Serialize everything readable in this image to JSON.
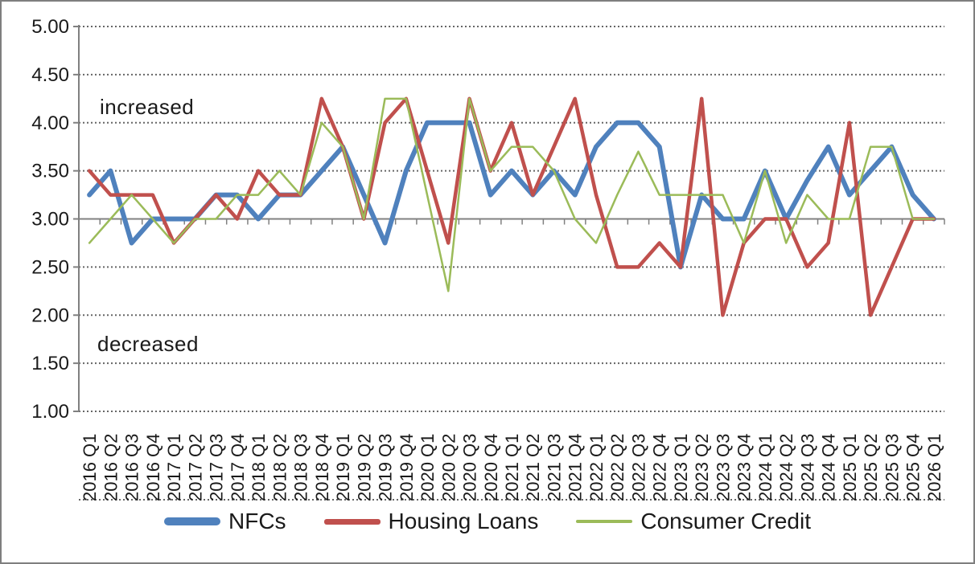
{
  "chart_data": {
    "type": "line",
    "title": "",
    "xlabel": "",
    "ylabel": "",
    "ylim": [
      1.0,
      5.0
    ],
    "ytick_step": 0.5,
    "axis_cross_value": 3.0,
    "grid": "horizontal-dotted",
    "legend_position": "bottom",
    "ytick_values": [
      5.0,
      4.5,
      4.0,
      3.5,
      3.0,
      2.5,
      2.0,
      1.5,
      1.0
    ],
    "ytick_labels": [
      "5.00",
      "4.50",
      "4.00",
      "3.50",
      "3.00",
      "2.50",
      "2.00",
      "1.50",
      "1.00"
    ],
    "x_labels": [
      "2016 Q1",
      "2016 Q2",
      "2016 Q3",
      "2016 Q4",
      "2017 Q1",
      "2017 Q2",
      "2017 Q3",
      "2017 Q4",
      "2018 Q1",
      "2018 Q2",
      "2018 Q3",
      "2018 Q4",
      "2019 Q1",
      "2019 Q2",
      "2019 Q3",
      "2019 Q4",
      "2020 Q1",
      "2020 Q2",
      "2020 Q3",
      "2020 Q4",
      "2021 Q1",
      "2021 Q2",
      "2021 Q3",
      "2021 Q4",
      "2022 Q1",
      "2022 Q2",
      "2022 Q3",
      "2022 Q4",
      "2023 Q1",
      "2023 Q2",
      "2023 Q3",
      "2023 Q4",
      "2024 Q1",
      "2024 Q2",
      "2024 Q3",
      "2024 Q4",
      "2025 Q1",
      "2025 Q2",
      "2025 Q3",
      "2025 Q4",
      "2026 Q1"
    ],
    "series": [
      {
        "name": "NFCs",
        "color": "#4F81BD",
        "stroke_width": 6,
        "values": [
          3.25,
          3.5,
          2.75,
          3.0,
          3.0,
          3.0,
          3.25,
          3.25,
          3.0,
          3.25,
          3.25,
          3.5,
          3.75,
          3.25,
          2.75,
          3.5,
          4.0,
          4.0,
          4.0,
          3.25,
          3.5,
          3.25,
          3.5,
          3.25,
          3.75,
          4.0,
          4.0,
          3.75,
          2.5,
          3.25,
          3.0,
          3.0,
          3.5,
          3.0,
          3.4,
          3.75,
          3.25,
          3.5,
          3.75,
          3.25,
          3.0
        ]
      },
      {
        "name": "Housing Loans",
        "color": "#C0504D",
        "stroke_width": 4.5,
        "values": [
          3.5,
          3.25,
          3.25,
          3.25,
          2.75,
          3.0,
          3.25,
          3.0,
          3.5,
          3.25,
          3.25,
          4.25,
          3.75,
          3.0,
          4.0,
          4.25,
          3.5,
          2.75,
          4.25,
          3.5,
          4.0,
          3.25,
          3.75,
          4.25,
          3.25,
          2.5,
          2.5,
          2.75,
          2.5,
          4.25,
          2.0,
          2.75,
          3.0,
          3.0,
          2.5,
          2.75,
          4.0,
          2.0,
          2.5,
          3.0,
          3.0
        ]
      },
      {
        "name": "Consumer Credit",
        "color": "#9BBB59",
        "stroke_width": 2.5,
        "values": [
          2.75,
          3.0,
          3.25,
          3.0,
          2.75,
          3.0,
          3.0,
          3.25,
          3.25,
          3.5,
          3.25,
          4.0,
          3.75,
          3.0,
          4.25,
          4.25,
          3.25,
          2.25,
          4.25,
          3.5,
          3.75,
          3.75,
          3.5,
          3.0,
          2.75,
          3.25,
          3.7,
          3.25,
          3.25,
          3.25,
          3.25,
          2.75,
          3.5,
          2.75,
          3.25,
          3.0,
          3.0,
          3.75,
          3.75,
          3.0,
          3.0
        ]
      }
    ],
    "annotations": [
      {
        "text": "increased",
        "y_value": 4.15
      },
      {
        "text": "decreased",
        "y_value": 1.78
      }
    ]
  }
}
